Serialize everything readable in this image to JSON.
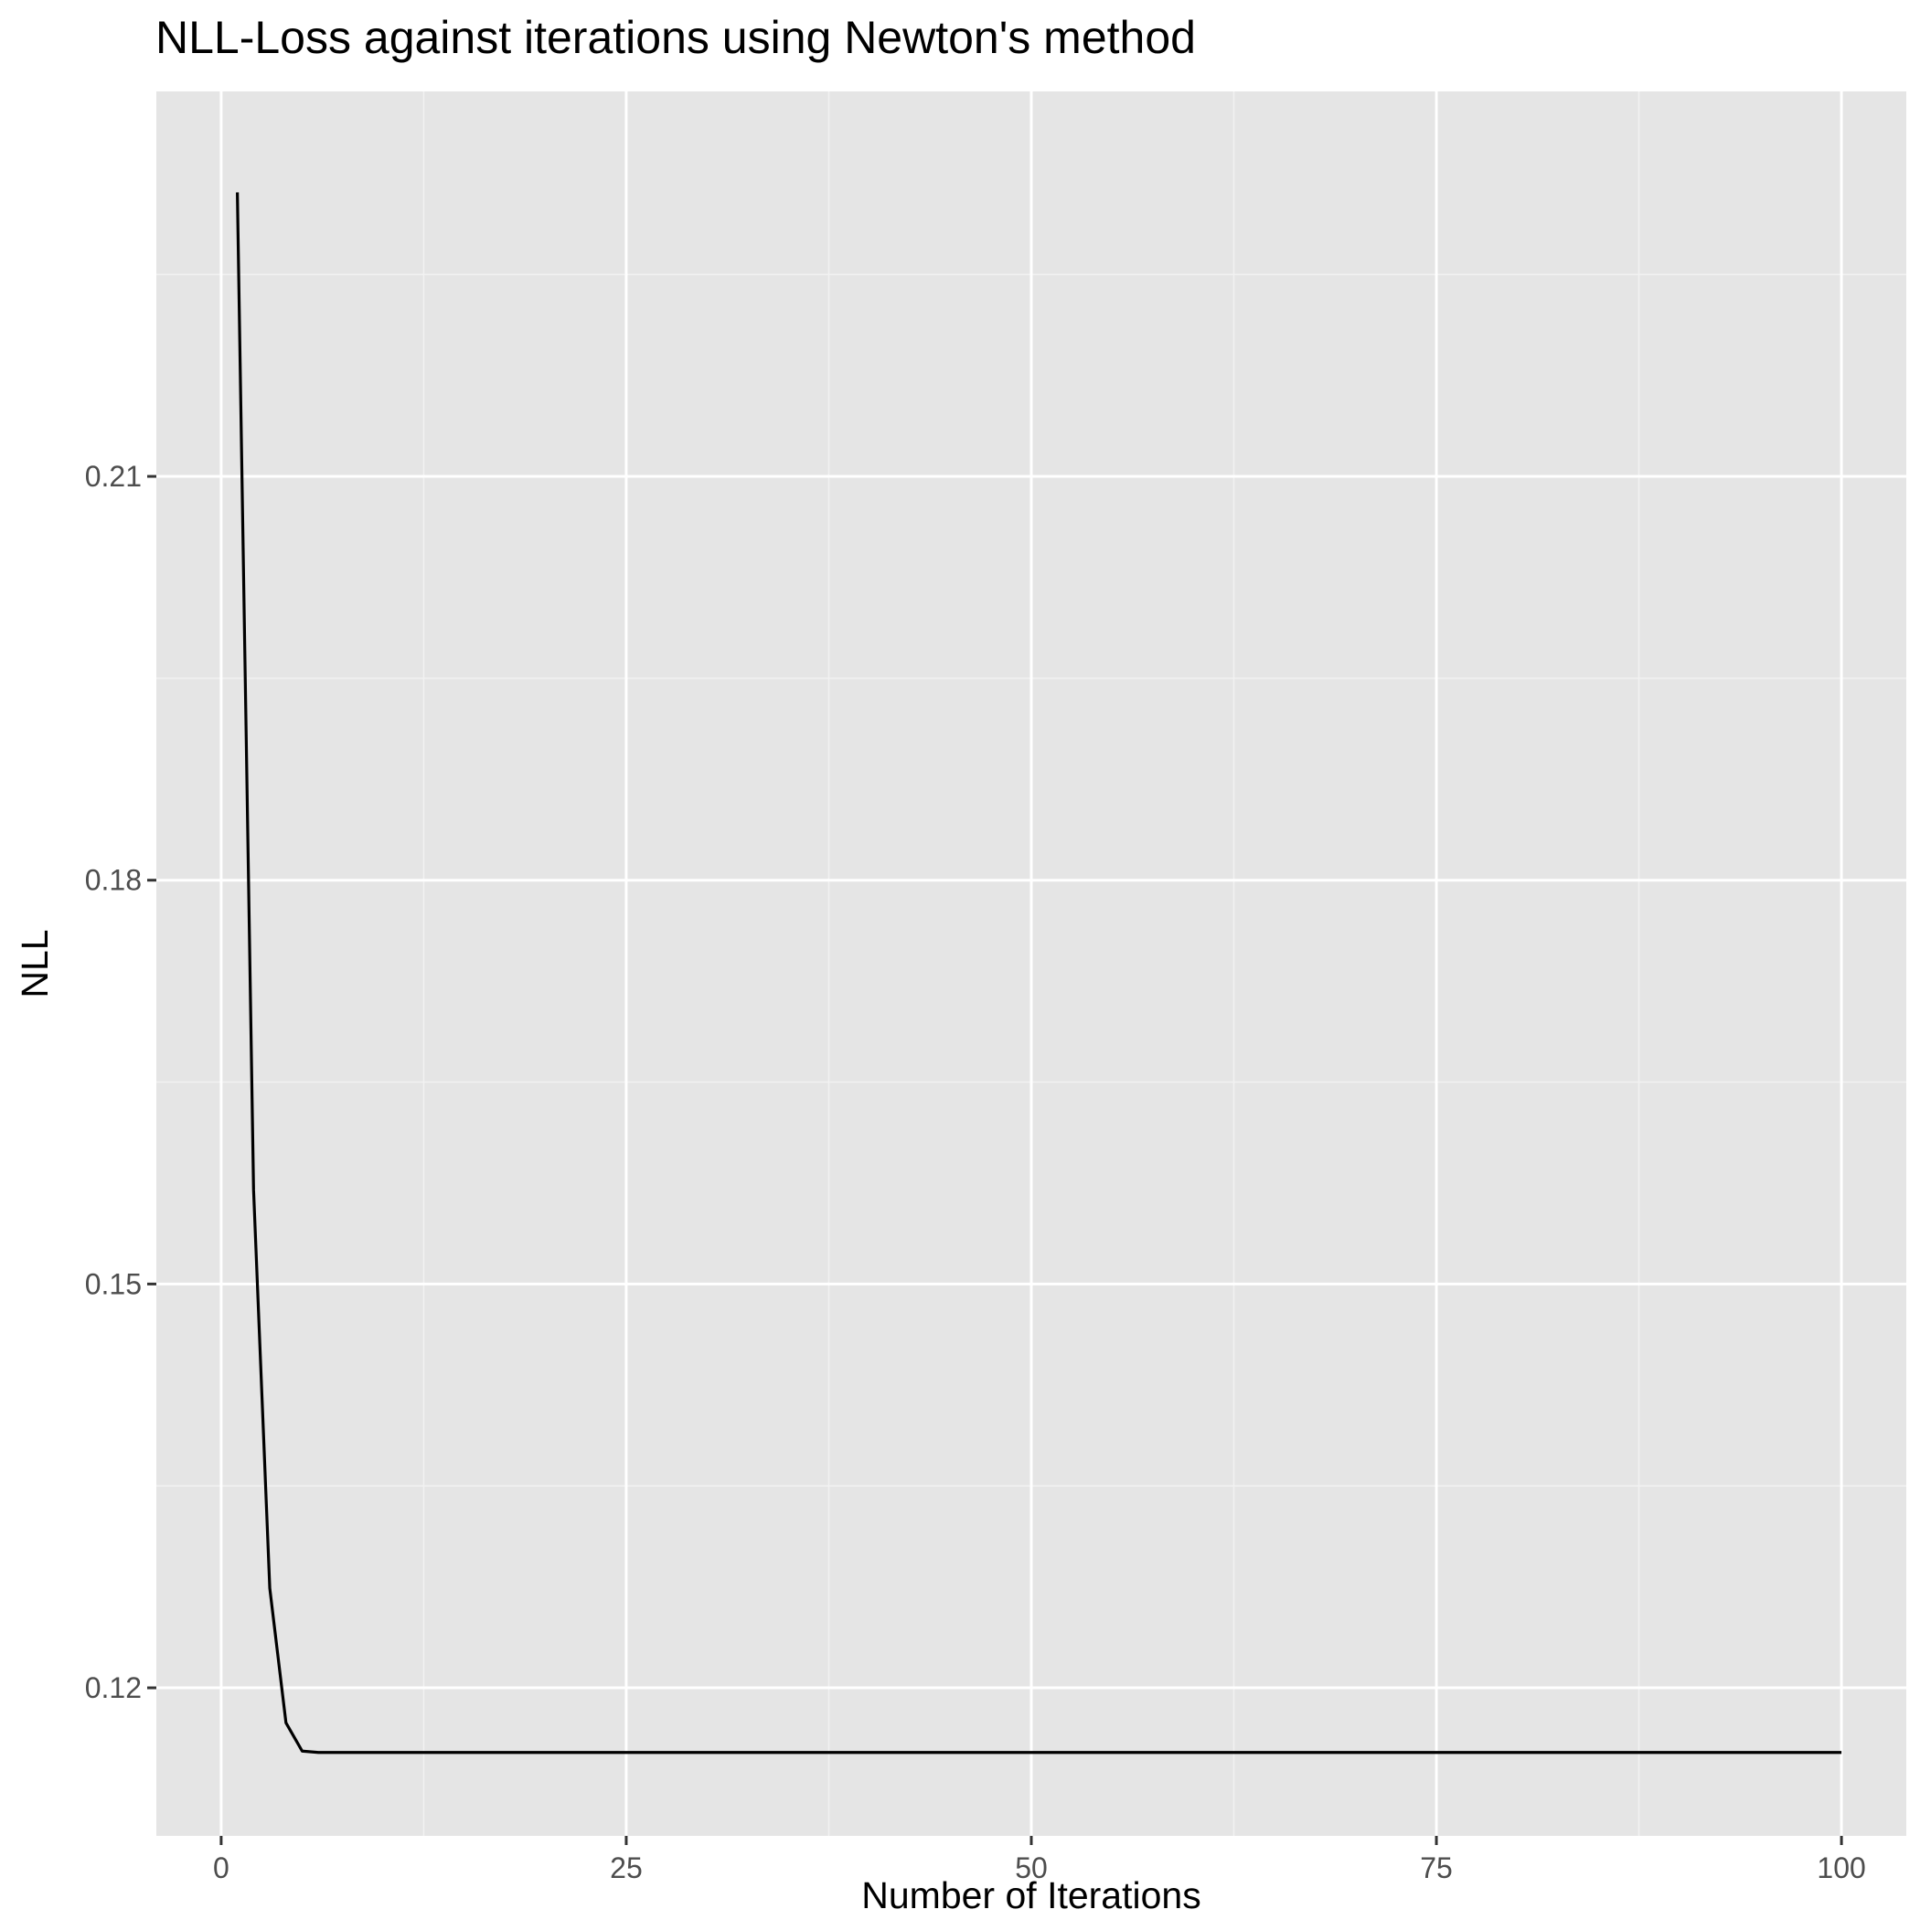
{
  "chart_data": {
    "type": "line",
    "title": "NLL-Loss against iterations using Newton's method",
    "xlabel": "Number of Iterations",
    "ylabel": "NLL",
    "xlim": [
      -4,
      104
    ],
    "ylim": [
      0.109,
      0.2386
    ],
    "x_ticks": [
      0,
      25,
      50,
      75,
      100
    ],
    "x_tick_labels": [
      "0",
      "25",
      "50",
      "75",
      "100"
    ],
    "x_minor_ticks": [
      12.5,
      37.5,
      62.5,
      87.5
    ],
    "y_ticks": [
      0.12,
      0.15,
      0.18,
      0.21
    ],
    "y_tick_labels": [
      "0.12",
      "0.15",
      "0.18",
      "0.21"
    ],
    "y_minor_ticks": [
      0.135,
      0.165,
      0.195,
      0.225
    ],
    "grid": true,
    "legend": "none",
    "series": [
      {
        "color": "#000000",
        "x": [
          1,
          2,
          3,
          4,
          5,
          6,
          100
        ],
        "y": [
          0.2311,
          0.157,
          0.1274,
          0.1174,
          0.1153,
          0.1152,
          0.1152
        ]
      }
    ],
    "colors": {
      "panel_background": "#e5e5e5",
      "grid_major": "#ffffff",
      "grid_minor": "#f2f2f2",
      "tick_label": "#4d4d4d",
      "tick_mark": "#333333"
    }
  }
}
